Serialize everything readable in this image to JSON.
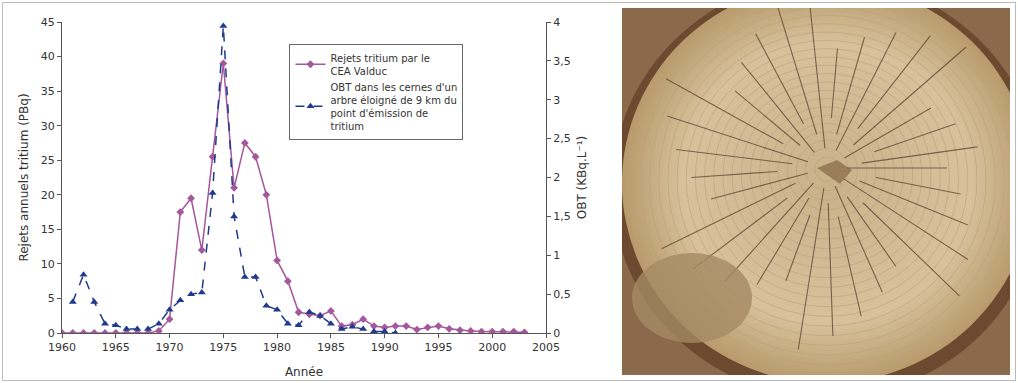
{
  "chart_data": {
    "type": "line",
    "x_label": "Année",
    "y_label": "Rejets annuels tritium (PBq)",
    "y2_label": "OBT (KBq.L⁻¹)",
    "xlim": [
      1960,
      2005
    ],
    "xticks": [
      1960,
      1965,
      1970,
      1975,
      1980,
      1985,
      1990,
      1995,
      2000,
      2005
    ],
    "ylim": [
      0,
      45
    ],
    "yticks": [
      0,
      5,
      10,
      15,
      20,
      25,
      30,
      35,
      40,
      45
    ],
    "y2lim": [
      0,
      4
    ],
    "y2ticks": [
      0,
      {
        "value": 0.5,
        "label": "0,5"
      },
      1,
      {
        "value": 1.5,
        "label": "1,5"
      },
      2,
      {
        "value": 2.5,
        "label": "2,5"
      },
      3,
      {
        "value": 3.5,
        "label": "3,5"
      },
      4
    ],
    "grid": false,
    "legend": "top",
    "series": [
      {
        "name": "Rejets tritium par le CEA Valduc",
        "color": "#a5579c",
        "marker": "diamond",
        "line_style": "solid",
        "x": [
          1960,
          1961,
          1962,
          1963,
          1964,
          1965,
          1966,
          1967,
          1968,
          1969,
          1970,
          1971,
          1972,
          1973,
          1974,
          1975,
          1976,
          1977,
          1978,
          1979,
          1980,
          1981,
          1982,
          1983,
          1984,
          1985,
          1986,
          1987,
          1988,
          1989,
          1990,
          1991,
          1992,
          1993,
          1994,
          1995,
          1996,
          1997,
          1998,
          1999,
          2000,
          2001,
          2002,
          2003
        ],
        "values": [
          0,
          0,
          0,
          0,
          0,
          0,
          0,
          0,
          0,
          0.3,
          2,
          17.5,
          19.5,
          12,
          25.5,
          39,
          21,
          27.5,
          25.5,
          20,
          10.5,
          7.5,
          3,
          2.7,
          2.5,
          3.2,
          1,
          1.2,
          2,
          1,
          0.8,
          1,
          1,
          0.5,
          0.8,
          1,
          0.6,
          0.4,
          0.3,
          0.2,
          0.2,
          0.2,
          0.2,
          0.1
        ]
      },
      {
        "name": "OBT dans les cernes d'un arbre éloigné de 9 km du point d'émission de tritium",
        "color": "#1f3a8c",
        "marker": "triangle-up",
        "line_style": "dash",
        "axis": "y2",
        "x": [
          1961,
          1962,
          1963,
          1964,
          1965,
          1966,
          1967,
          1968,
          1969,
          1970,
          1971,
          1972,
          1973,
          1974,
          1975,
          1976,
          1977,
          1978,
          1979,
          1980,
          1981,
          1982,
          1983,
          1984,
          1985,
          1986,
          1987,
          1988,
          1989,
          1990,
          1991
        ],
        "values": [
          0.4,
          0.75,
          0.4,
          0.12,
          0.1,
          0.05,
          0.05,
          0.05,
          0.12,
          0.3,
          0.42,
          0.5,
          0.52,
          1.8,
          3.95,
          1.5,
          0.72,
          0.72,
          0.35,
          0.3,
          0.12,
          0.1,
          0.27,
          0.22,
          0.12,
          0.05,
          0.08,
          0.05,
          0.02,
          0.02,
          0
        ]
      }
    ]
  }
}
